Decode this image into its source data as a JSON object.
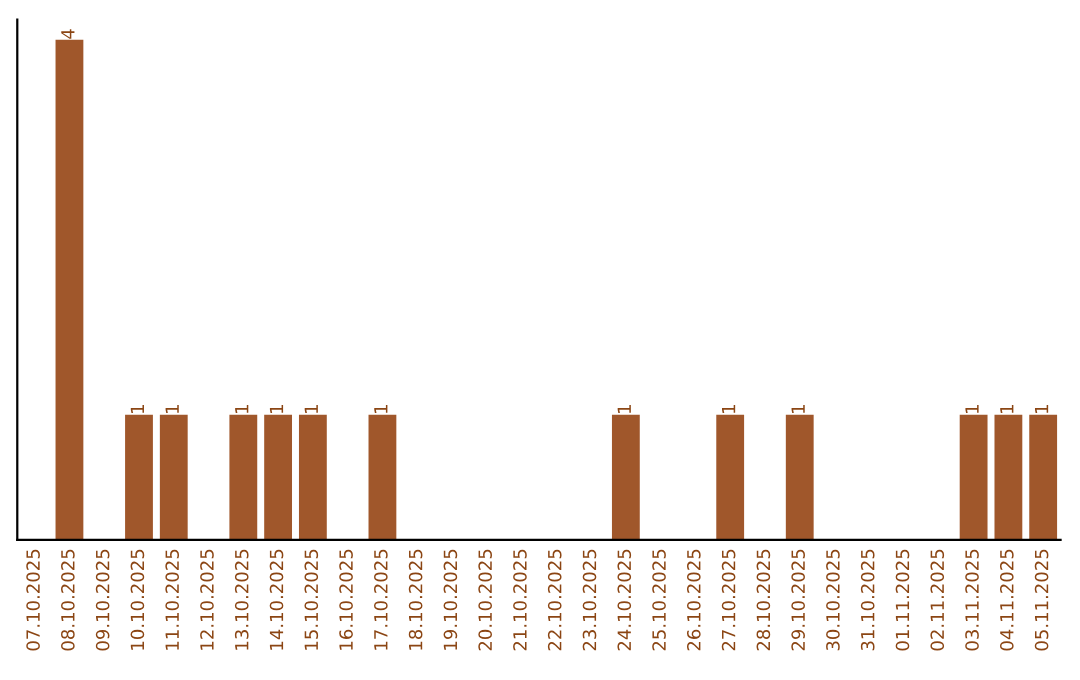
{
  "chart_data": {
    "type": "bar",
    "categories": [
      "07.10.2025",
      "08.10.2025",
      "09.10.2025",
      "10.10.2025",
      "11.10.2025",
      "12.10.2025",
      "13.10.2025",
      "14.10.2025",
      "15.10.2025",
      "16.10.2025",
      "17.10.2025",
      "18.10.2025",
      "19.10.2025",
      "20.10.2025",
      "21.10.2025",
      "22.10.2025",
      "23.10.2025",
      "24.10.2025",
      "25.10.2025",
      "26.10.2025",
      "27.10.2025",
      "28.10.2025",
      "29.10.2025",
      "30.10.2025",
      "31.10.2025",
      "01.11.2025",
      "02.11.2025",
      "03.11.2025",
      "04.11.2025",
      "05.11.2025"
    ],
    "values": [
      0,
      4,
      0,
      1,
      1,
      0,
      1,
      1,
      1,
      0,
      1,
      0,
      0,
      0,
      0,
      0,
      0,
      1,
      0,
      0,
      1,
      0,
      1,
      0,
      0,
      0,
      0,
      1,
      1,
      1
    ],
    "value_labels": [
      null,
      "4",
      null,
      "1",
      "1",
      null,
      "1",
      "1",
      "1",
      null,
      "1",
      null,
      null,
      null,
      null,
      null,
      null,
      "1",
      null,
      null,
      "1",
      null,
      "1",
      null,
      null,
      null,
      null,
      "1",
      "1",
      "1"
    ],
    "color": "#a0572b",
    "grid": false,
    "legend": false
  }
}
